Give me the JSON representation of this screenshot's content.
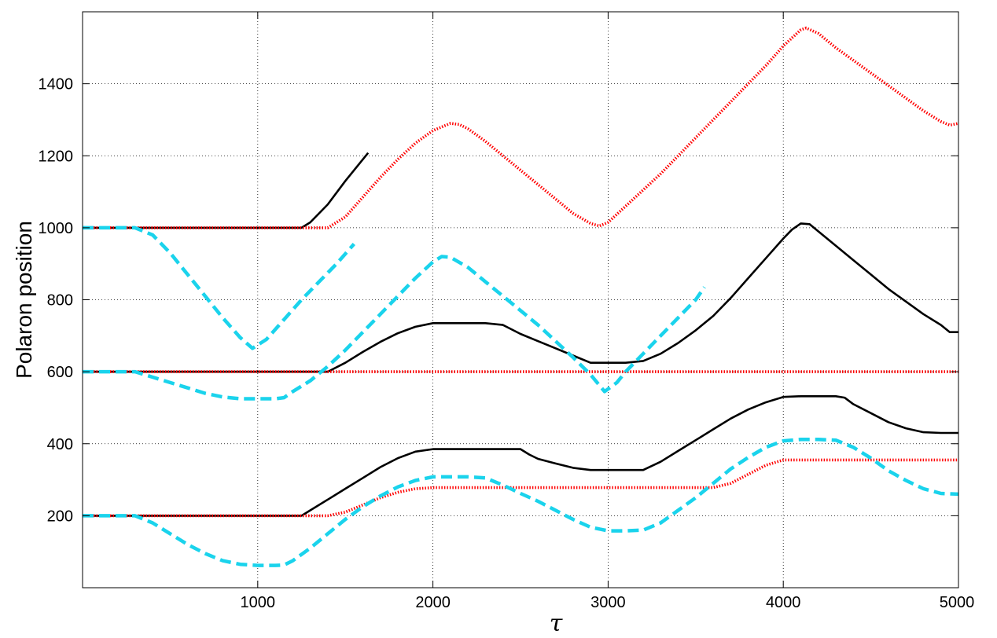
{
  "chart_data": {
    "type": "line",
    "title": "",
    "xlabel": "τ",
    "ylabel": "Polaron position",
    "xlim": [
      0,
      5000
    ],
    "ylim": [
      0,
      1600
    ],
    "xticks": [
      1000,
      2000,
      3000,
      4000,
      5000
    ],
    "yticks": [
      200,
      400,
      600,
      800,
      1000,
      1200,
      1400
    ],
    "grid": true,
    "legend": "none",
    "styles": {
      "solid": {
        "color": "#000000",
        "dash": "none",
        "width": 2.6
      },
      "dotted": {
        "color": "#ff0000",
        "dash": "1.5,2",
        "width": 3.6
      },
      "dashed": {
        "color": "#1ad3ec",
        "dash": "14,7",
        "width": 4.5
      }
    },
    "series": [
      {
        "style": "solid",
        "x": [
          0,
          1250,
          1300,
          1400,
          1500,
          1630
        ],
        "y": [
          1000,
          1000,
          1015,
          1065,
          1130,
          1208
        ]
      },
      {
        "style": "dotted",
        "x": [
          0,
          1400,
          1500,
          1600,
          1700,
          1800,
          1900,
          2000,
          2100,
          2150,
          2200,
          2300,
          2400,
          2500,
          2600,
          2700,
          2800,
          2900,
          2950,
          3000,
          3100,
          3200,
          3300,
          3400,
          3500,
          3600,
          3700,
          3800,
          3900,
          4000,
          4100,
          4130,
          4200,
          4300,
          4400,
          4500,
          4600,
          4700,
          4800,
          4900,
          4950,
          5000
        ],
        "y": [
          1000,
          1000,
          1030,
          1085,
          1140,
          1190,
          1235,
          1270,
          1290,
          1287,
          1275,
          1240,
          1200,
          1160,
          1120,
          1080,
          1040,
          1012,
          1005,
          1015,
          1060,
          1105,
          1150,
          1200,
          1250,
          1300,
          1350,
          1400,
          1450,
          1505,
          1550,
          1555,
          1540,
          1500,
          1465,
          1430,
          1395,
          1360,
          1325,
          1295,
          1285,
          1290
        ]
      },
      {
        "style": "dashed",
        "x": [
          0,
          300,
          400,
          500,
          600,
          700,
          800,
          900,
          970,
          1050,
          1150,
          1250,
          1350,
          1450,
          1550
        ],
        "y": [
          1000,
          1000,
          980,
          930,
          870,
          810,
          750,
          695,
          665,
          690,
          745,
          800,
          850,
          900,
          955
        ]
      },
      {
        "style": "solid",
        "x": [
          0,
          1400,
          1500,
          1600,
          1700,
          1800,
          1900,
          2000,
          2100,
          2200,
          2300,
          2400,
          2500,
          2600,
          2700,
          2800,
          2900,
          3000,
          3100,
          3200,
          3300,
          3400,
          3500,
          3600,
          3700,
          3800,
          3900,
          4000,
          4050,
          4100,
          4150,
          4200,
          4300,
          4400,
          4500,
          4600,
          4700,
          4800,
          4900,
          4950,
          5000
        ],
        "y": [
          600,
          600,
          625,
          655,
          683,
          707,
          725,
          735,
          735,
          735,
          735,
          730,
          705,
          685,
          665,
          645,
          625,
          625,
          625,
          630,
          650,
          680,
          715,
          755,
          805,
          860,
          915,
          970,
          995,
          1012,
          1010,
          990,
          950,
          910,
          870,
          830,
          795,
          760,
          730,
          710,
          710
        ]
      },
      {
        "style": "dotted",
        "x": [
          0,
          5000
        ],
        "y": [
          600,
          600
        ]
      },
      {
        "style": "dashed",
        "x": [
          0,
          300,
          400,
          500,
          600,
          700,
          800,
          900,
          1000,
          1100,
          1150,
          1200,
          1300,
          1400,
          1500,
          1600,
          1700,
          1800,
          1900,
          2000,
          2050,
          2100,
          2200,
          2300,
          2400,
          2500,
          2600,
          2700,
          2800,
          2900,
          2980,
          3050,
          3100,
          3200,
          3300,
          3400,
          3500,
          3550
        ],
        "y": [
          600,
          600,
          585,
          570,
          555,
          540,
          530,
          525,
          525,
          525,
          528,
          545,
          575,
          615,
          660,
          710,
          760,
          810,
          860,
          905,
          920,
          918,
          890,
          850,
          810,
          770,
          730,
          685,
          640,
          592,
          545,
          570,
          600,
          650,
          700,
          750,
          800,
          835
        ]
      },
      {
        "style": "solid",
        "x": [
          0,
          1250,
          1300,
          1400,
          1500,
          1600,
          1700,
          1800,
          1900,
          2000,
          2100,
          2200,
          2300,
          2400,
          2500,
          2550,
          2600,
          2700,
          2800,
          2900,
          3000,
          3100,
          3200,
          3300,
          3400,
          3500,
          3600,
          3700,
          3800,
          3900,
          4000,
          4100,
          4200,
          4300,
          4350,
          4400,
          4500,
          4600,
          4700,
          4800,
          4900,
          5000
        ],
        "y": [
          200,
          200,
          215,
          245,
          275,
          305,
          335,
          360,
          378,
          385,
          385,
          385,
          385,
          385,
          385,
          370,
          358,
          345,
          333,
          327,
          327,
          327,
          327,
          350,
          380,
          410,
          440,
          470,
          495,
          515,
          530,
          532,
          532,
          532,
          528,
          510,
          485,
          460,
          443,
          432,
          430,
          430
        ]
      },
      {
        "style": "dotted",
        "x": [
          0,
          1400,
          1500,
          1600,
          1700,
          1800,
          1900,
          2000,
          2100,
          3600,
          3700,
          3800,
          3900,
          4000,
          4100,
          5000
        ],
        "y": [
          200,
          200,
          210,
          230,
          250,
          265,
          275,
          278,
          278,
          278,
          290,
          315,
          340,
          355,
          355,
          355
        ]
      },
      {
        "style": "dashed",
        "x": [
          0,
          300,
          400,
          500,
          600,
          700,
          800,
          900,
          1000,
          1100,
          1150,
          1200,
          1300,
          1400,
          1500,
          1600,
          1700,
          1800,
          1900,
          2000,
          2100,
          2200,
          2300,
          2400,
          2500,
          2600,
          2700,
          2800,
          2900,
          3000,
          3100,
          3200,
          3300,
          3400,
          3500,
          3600,
          3700,
          3800,
          3900,
          4000,
          4100,
          4200,
          4300,
          4400,
          4500,
          4600,
          4700,
          4800,
          4900,
          5000
        ],
        "y": [
          200,
          200,
          180,
          150,
          120,
          95,
          75,
          65,
          62,
          62,
          63,
          75,
          110,
          150,
          190,
          225,
          255,
          280,
          298,
          308,
          308,
          308,
          305,
          285,
          262,
          240,
          215,
          190,
          168,
          158,
          158,
          160,
          180,
          215,
          250,
          290,
          330,
          362,
          390,
          408,
          412,
          412,
          410,
          390,
          360,
          325,
          298,
          275,
          262,
          260
        ]
      }
    ]
  }
}
